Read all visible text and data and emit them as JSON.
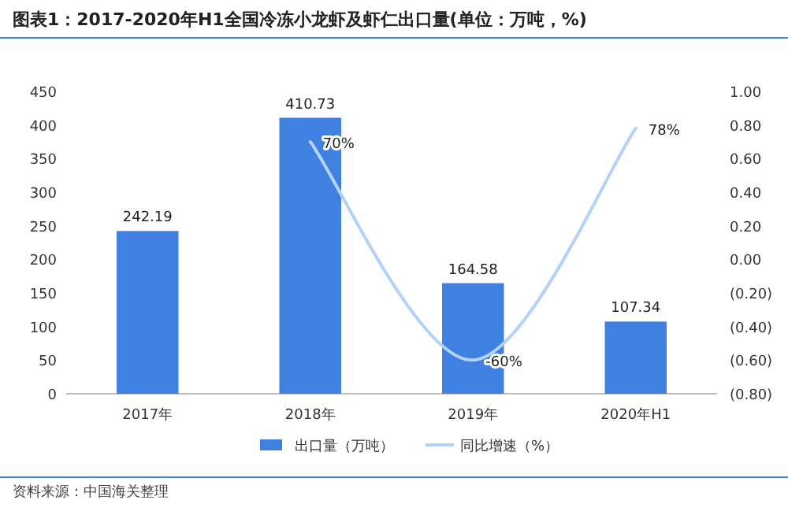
{
  "chart_data": {
    "type": "bar",
    "title": "图表1：2017-2020年H1全国冷冻小龙虾及虾仁出口量(单位：万吨，%)",
    "categories": [
      "2017年",
      "2018年",
      "2019年",
      "2020年H1"
    ],
    "series": [
      {
        "name": "出口量（万吨）",
        "color": "#3f80e0",
        "values": [
          242.19,
          410.73,
          164.58,
          107.34
        ],
        "value_labels": [
          "242.19",
          "410.73",
          "164.58",
          "107.34"
        ]
      },
      {
        "name": "同比增速（%）",
        "type": "line",
        "axis": "y2",
        "color": "#b3d2fa",
        "values": [
          null,
          0.7,
          -0.6,
          0.78
        ],
        "value_labels": [
          null,
          "70%",
          "-60%",
          "78%"
        ]
      }
    ],
    "ylim": [
      0,
      450
    ],
    "yticks": [
      0,
      50,
      100,
      150,
      200,
      250,
      300,
      350,
      400,
      450
    ],
    "y2lim": [
      -0.8,
      1.0
    ],
    "y2ticks": [
      {
        "value": -0.8,
        "label": "(0.80)"
      },
      {
        "value": -0.6,
        "label": "(0.60)"
      },
      {
        "value": -0.4,
        "label": "(0.40)"
      },
      {
        "value": -0.2,
        "label": "(0.20)"
      },
      {
        "value": 0,
        "label": "0.00"
      },
      {
        "value": 0.2,
        "label": "0.20"
      },
      {
        "value": 0.4,
        "label": "0.40"
      },
      {
        "value": 0.6,
        "label": "0.60"
      },
      {
        "value": 0.8,
        "label": "0.80"
      },
      {
        "value": 1.0,
        "label": "1.00"
      }
    ],
    "grid": false,
    "legend": "bottom",
    "marker": "none",
    "line_style": "solid",
    "annotations": [
      "资料来源：中国海关整理"
    ]
  }
}
